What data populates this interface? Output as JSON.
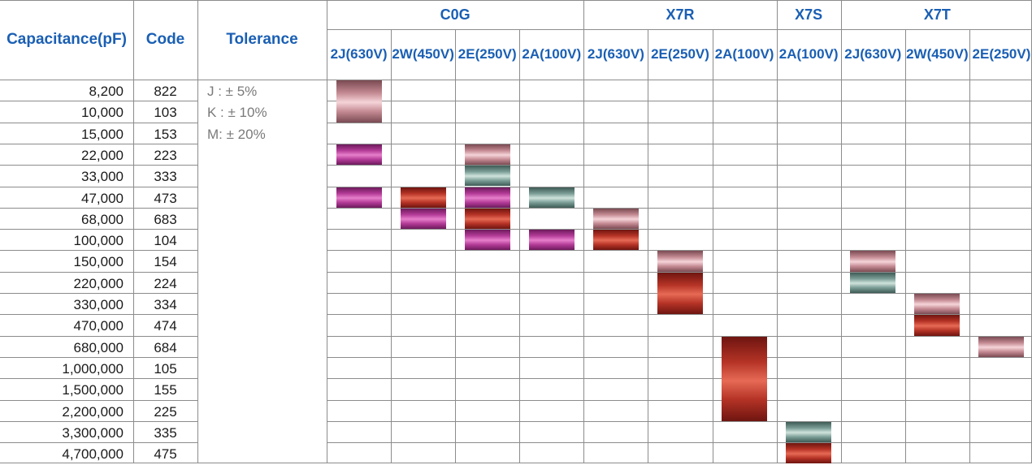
{
  "headers": {
    "capacitance": "Capacitance\n(pF)",
    "code": "Code",
    "tolerance": "Tolerance"
  },
  "groups": [
    "C0G",
    "X7R",
    "X7S",
    "X7T"
  ],
  "columns": [
    {
      "group": "C0G",
      "label": "2J\n(630V)"
    },
    {
      "group": "C0G",
      "label": "2W\n(450V)"
    },
    {
      "group": "C0G",
      "label": "2E\n(250V)"
    },
    {
      "group": "C0G",
      "label": "2A\n(100V)"
    },
    {
      "group": "X7R",
      "label": "2J\n(630V)"
    },
    {
      "group": "X7R",
      "label": "2E\n(250V)"
    },
    {
      "group": "X7R",
      "label": "2A\n(100V)"
    },
    {
      "group": "X7S",
      "label": "2A\n(100V)"
    },
    {
      "group": "X7T",
      "label": "2J\n(630V)"
    },
    {
      "group": "X7T",
      "label": "2W\n(450V)"
    },
    {
      "group": "X7T",
      "label": "2E\n(250V)"
    }
  ],
  "tolerances": [
    "J : ± 5%",
    "K : ± 10%",
    "M: ± 20%"
  ],
  "rows": [
    {
      "capacitance": "8,200",
      "code": "822"
    },
    {
      "capacitance": "10,000",
      "code": "103"
    },
    {
      "capacitance": "15,000",
      "code": "153"
    },
    {
      "capacitance": "22,000",
      "code": "223"
    },
    {
      "capacitance": "33,000",
      "code": "333"
    },
    {
      "capacitance": "47,000",
      "code": "473"
    },
    {
      "capacitance": "68,000",
      "code": "683"
    },
    {
      "capacitance": "100,000",
      "code": "104"
    },
    {
      "capacitance": "150,000",
      "code": "154"
    },
    {
      "capacitance": "220,000",
      "code": "224"
    },
    {
      "capacitance": "330,000",
      "code": "334"
    },
    {
      "capacitance": "470,000",
      "code": "474"
    },
    {
      "capacitance": "680,000",
      "code": "684"
    },
    {
      "capacitance": "1,000,000",
      "code": "105"
    },
    {
      "capacitance": "1,500,000",
      "code": "155"
    },
    {
      "capacitance": "2,200,000",
      "code": "225"
    },
    {
      "capacitance": "3,300,000",
      "code": "335"
    },
    {
      "capacitance": "4,700,000",
      "code": "475"
    }
  ],
  "chip_colors": {
    "pink": "#f5d4d8",
    "magenta": "#c0449f",
    "red": "#c63b2c",
    "teal": "#a9c6bd",
    "header_text": "#1a5fb4"
  },
  "chips": [
    {
      "col": 0,
      "start": 0,
      "end": 1,
      "color": "pink"
    },
    {
      "col": 0,
      "start": 3,
      "end": 3,
      "color": "magenta"
    },
    {
      "col": 0,
      "start": 5,
      "end": 5,
      "color": "magenta"
    },
    {
      "col": 1,
      "start": 5,
      "end": 5,
      "color": "red"
    },
    {
      "col": 1,
      "start": 6,
      "end": 6,
      "color": "magenta"
    },
    {
      "col": 2,
      "start": 3,
      "end": 3,
      "color": "pink"
    },
    {
      "col": 2,
      "start": 4,
      "end": 4,
      "color": "teal"
    },
    {
      "col": 2,
      "start": 5,
      "end": 5,
      "color": "magenta"
    },
    {
      "col": 2,
      "start": 6,
      "end": 6,
      "color": "red"
    },
    {
      "col": 2,
      "start": 7,
      "end": 7,
      "color": "magenta"
    },
    {
      "col": 3,
      "start": 5,
      "end": 5,
      "color": "teal"
    },
    {
      "col": 3,
      "start": 7,
      "end": 7,
      "color": "magenta"
    },
    {
      "col": 4,
      "start": 6,
      "end": 6,
      "color": "pink"
    },
    {
      "col": 4,
      "start": 7,
      "end": 7,
      "color": "red"
    },
    {
      "col": 5,
      "start": 8,
      "end": 8,
      "color": "pink"
    },
    {
      "col": 5,
      "start": 9,
      "end": 10,
      "color": "red"
    },
    {
      "col": 6,
      "start": 12,
      "end": 15,
      "color": "red"
    },
    {
      "col": 7,
      "start": 16,
      "end": 16,
      "color": "teal"
    },
    {
      "col": 7,
      "start": 17,
      "end": 17,
      "color": "red"
    },
    {
      "col": 8,
      "start": 8,
      "end": 8,
      "color": "pink"
    },
    {
      "col": 8,
      "start": 9,
      "end": 9,
      "color": "teal"
    },
    {
      "col": 9,
      "start": 10,
      "end": 10,
      "color": "pink"
    },
    {
      "col": 9,
      "start": 11,
      "end": 11,
      "color": "red"
    },
    {
      "col": 10,
      "start": 12,
      "end": 12,
      "color": "pink"
    }
  ]
}
